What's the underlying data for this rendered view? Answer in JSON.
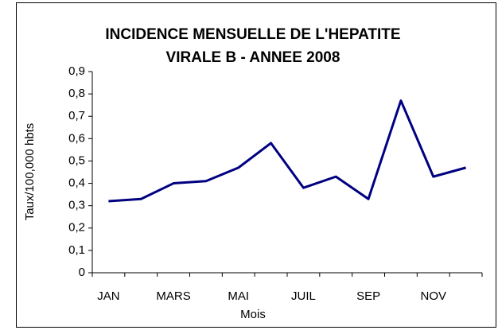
{
  "chart_data": {
    "type": "line",
    "title": [
      "INCIDENCE MENSUELLE DE L'HEPATITE",
      "VIRALE B - ANNEE 2008"
    ],
    "x_label": "Mois",
    "y_label": "Taux/100,000 hbts",
    "categories": [
      "JAN",
      null,
      "MARS",
      null,
      "MAI",
      null,
      "JUIL",
      null,
      "SEP",
      null,
      "NOV",
      null
    ],
    "series": [
      {
        "color": "#000080",
        "values": [
          0.32,
          0.33,
          0.4,
          0.41,
          0.47,
          0.58,
          0.38,
          0.43,
          0.33,
          0.77,
          0.43,
          0.47
        ]
      }
    ],
    "ylim": [
      0,
      0.9
    ],
    "yticks": [
      0,
      {
        "value": 0.1,
        "label": "0,1"
      },
      {
        "value": 0.2,
        "label": "0,2"
      },
      {
        "value": 0.3,
        "label": "0,3"
      },
      {
        "value": 0.4,
        "label": "0,4"
      },
      {
        "value": 0.5,
        "label": "0,5"
      },
      {
        "value": 0.6,
        "label": "0,6"
      },
      {
        "value": 0.7,
        "label": "0,7"
      },
      {
        "value": 0.8,
        "label": "0,8"
      },
      {
        "value": 0.9,
        "label": "0,9"
      }
    ],
    "grid": false
  }
}
